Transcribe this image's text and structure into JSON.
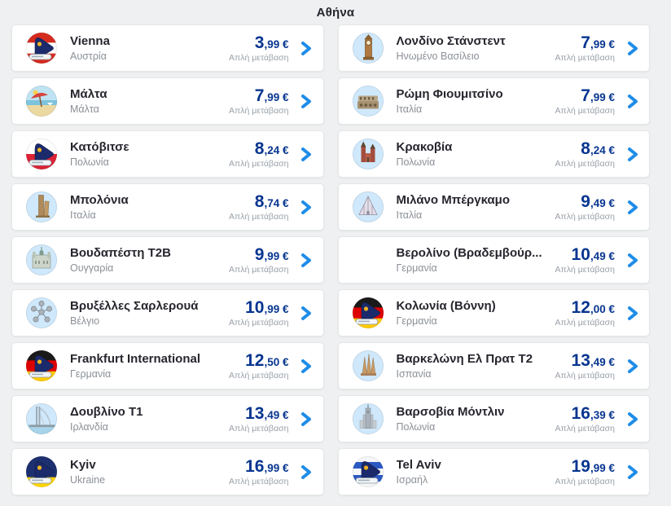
{
  "page": {
    "title": "Αθήνα",
    "background_color": "#eef0f1",
    "card_background": "#ffffff"
  },
  "colors": {
    "price_navy": "#073590",
    "chevron_blue": "#1f8de8",
    "title_dark": "#26262e",
    "muted_gray": "#8b9096"
  },
  "labels": {
    "one_way": "Απλή μετάβαση",
    "currency": "€"
  },
  "cards": [
    {
      "title": "Vienna",
      "country": "Αυστρία",
      "price": "3,99 €",
      "price_main": "3",
      "price_rest": ",99 €",
      "fare_type": "Απλή μετάβαση",
      "icon": "austria-flag-tail-icon"
    },
    {
      "title": "Λονδίνο Στάνστεντ",
      "country": "Ηνωμένο Βασίλειο",
      "price": "7,99 €",
      "price_main": "7",
      "price_rest": ",99 €",
      "fare_type": "Απλή μετάβαση",
      "icon": "big-ben-icon"
    },
    {
      "title": "Μάλτα",
      "country": "Μάλτα",
      "price": "7,99 €",
      "price_main": "7",
      "price_rest": ",99 €",
      "fare_type": "Απλή μετάβαση",
      "icon": "malta-beach-icon"
    },
    {
      "title": "Ρώμη Φιουμιτσίνο",
      "country": "Ιταλία",
      "price": "7,99 €",
      "price_main": "7",
      "price_rest": ",99 €",
      "fare_type": "Απλή μετάβαση",
      "icon": "colosseum-icon"
    },
    {
      "title": "Κατόβιτσε",
      "country": "Πολωνία",
      "price": "8,24 €",
      "price_main": "8",
      "price_rest": ",24 €",
      "fare_type": "Απλή μετάβαση",
      "icon": "poland-flag-tail-icon"
    },
    {
      "title": "Κρακοβία",
      "country": "Πολωνία",
      "price": "8,24 €",
      "price_main": "8",
      "price_rest": ",24 €",
      "fare_type": "Απλή μετάβαση",
      "icon": "krakow-basilica-icon"
    },
    {
      "title": "Μπολόνια",
      "country": "Ιταλία",
      "price": "8,74 €",
      "price_main": "8",
      "price_rest": ",74 €",
      "fare_type": "Απλή μετάβαση",
      "icon": "bologna-towers-icon"
    },
    {
      "title": "Μιλάνο Μπέργκαμο",
      "country": "Ιταλία",
      "price": "9,49 €",
      "price_main": "9",
      "price_rest": ",49 €",
      "fare_type": "Απλή μετάβαση",
      "icon": "milan-duomo-icon"
    },
    {
      "title": "Βουδαπέστη T2B",
      "country": "Ουγγαρία",
      "price": "9,99 €",
      "price_main": "9",
      "price_rest": ",99 €",
      "fare_type": "Απλή μετάβαση",
      "icon": "budapest-parliament-icon"
    },
    {
      "title": "Βερολίνο (Βραδεμβούρ...",
      "country": "Γερμανία",
      "price": "10,49 €",
      "price_main": "10",
      "price_rest": ",49 €",
      "fare_type": "Απλή μετάβαση",
      "icon": "none"
    },
    {
      "title": "Βρυξέλλες Σαρλερουά",
      "country": "Βέλγιο",
      "price": "10,99 €",
      "price_main": "10",
      "price_rest": ",99 €",
      "fare_type": "Απλή μετάβαση",
      "icon": "atomium-icon"
    },
    {
      "title": "Κολωνία (Βόννη)",
      "country": "Γερμανία",
      "price": "12,00 €",
      "price_main": "12",
      "price_rest": ",00 €",
      "fare_type": "Απλή μετάβαση",
      "icon": "germany-flag-tail-icon"
    },
    {
      "title": "Frankfurt International",
      "country": "Γερμανία",
      "price": "12,50 €",
      "price_main": "12",
      "price_rest": ",50 €",
      "fare_type": "Απλή μετάβαση",
      "icon": "germany-flag-tail-icon"
    },
    {
      "title": "Βαρκελώνη Ελ Πρατ T2",
      "country": "Ισπανία",
      "price": "13,49 €",
      "price_main": "13",
      "price_rest": ",49 €",
      "fare_type": "Απλή μετάβαση",
      "icon": "sagrada-familia-icon"
    },
    {
      "title": "Δουβλίνο T1",
      "country": "Ιρλανδία",
      "price": "13,49 €",
      "price_main": "13",
      "price_rest": ",49 €",
      "fare_type": "Απλή μετάβαση",
      "icon": "dublin-bridge-icon"
    },
    {
      "title": "Βαρσοβία Μόντλιν",
      "country": "Πολωνία",
      "price": "16,39 €",
      "price_main": "16",
      "price_rest": ",39 €",
      "fare_type": "Απλή μετάβαση",
      "icon": "warsaw-palace-icon"
    },
    {
      "title": "Kyiv",
      "country": "Ukraine",
      "price": "16,99 €",
      "price_main": "16",
      "price_rest": ",99 €",
      "fare_type": "Απλή μετάβαση",
      "icon": "ukraine-flag-tail-icon"
    },
    {
      "title": "Tel Aviv",
      "country": "Ισραήλ",
      "price": "19,99 €",
      "price_main": "19",
      "price_rest": ",99 €",
      "fare_type": "Απλή μετάβαση",
      "icon": "israel-flag-tail-icon"
    }
  ]
}
